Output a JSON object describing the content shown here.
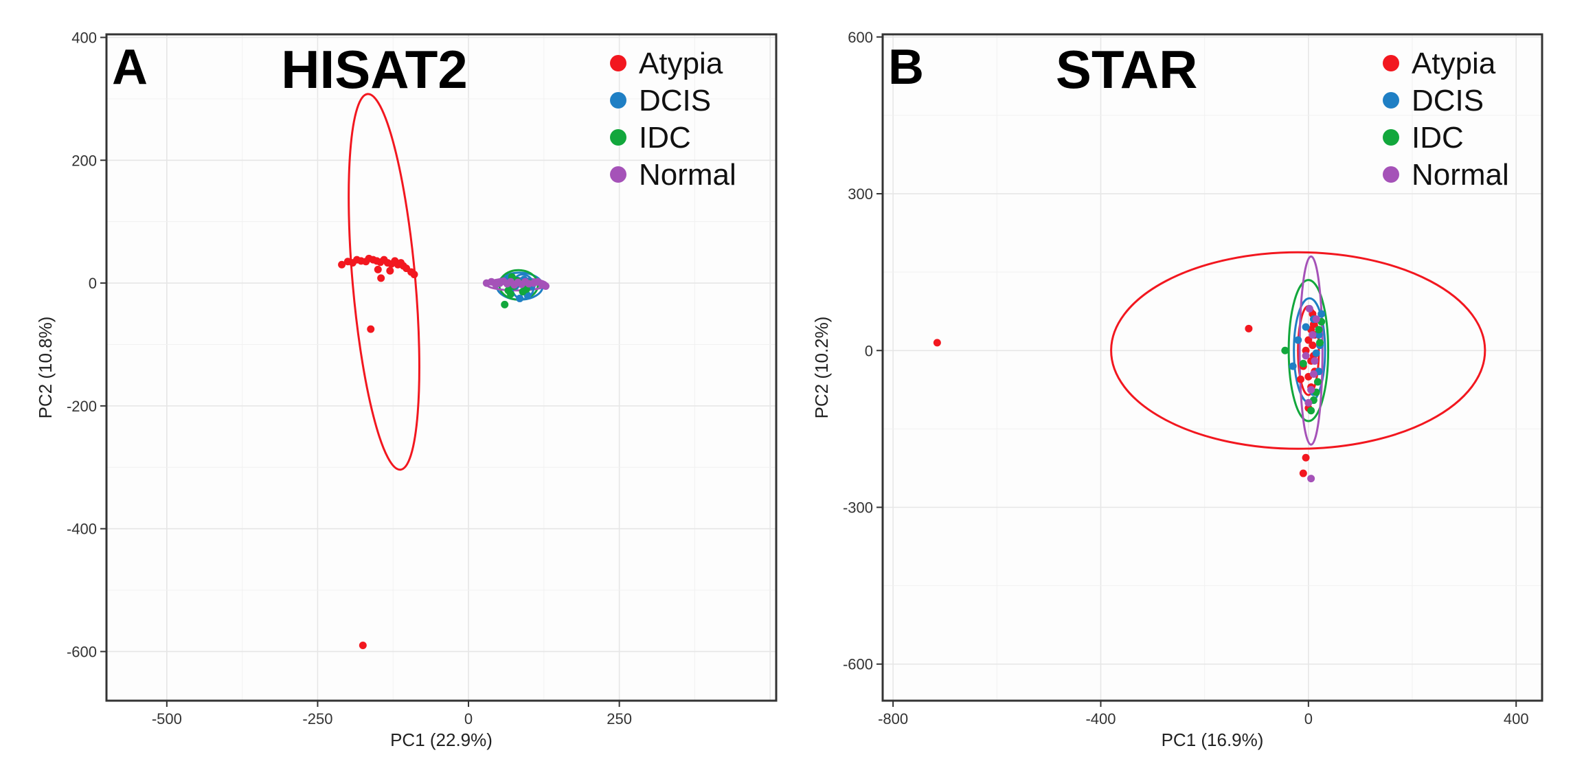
{
  "figure": {
    "colors": {
      "Atypia": "#f2171f",
      "DCIS": "#1f7fc4",
      "IDC": "#12a73c",
      "Normal": "#a552b8"
    }
  },
  "chart_data": [
    {
      "type": "scatter",
      "panel_letter": "A",
      "title": "HISAT2",
      "xlabel": "PC1 (22.9%)",
      "ylabel": "PC2 (10.8%)",
      "xlim": [
        -600,
        510
      ],
      "ylim": [
        -680,
        405
      ],
      "xticks": [
        -500,
        -250,
        0,
        250
      ],
      "yticks": [
        -600,
        -400,
        -200,
        0,
        200,
        400
      ],
      "grid": true,
      "legend_position": "top-right",
      "legend": [
        "Atypia",
        "DCIS",
        "IDC",
        "Normal"
      ],
      "series": [
        {
          "name": "Atypia",
          "points": [
            [
              -210,
              30
            ],
            [
              -200,
              35
            ],
            [
              -192,
              33
            ],
            [
              -185,
              38
            ],
            [
              -178,
              36
            ],
            [
              -170,
              35
            ],
            [
              -165,
              40
            ],
            [
              -158,
              38
            ],
            [
              -152,
              36
            ],
            [
              -146,
              34
            ],
            [
              -140,
              38
            ],
            [
              -134,
              33
            ],
            [
              -128,
              31
            ],
            [
              -122,
              36
            ],
            [
              -117,
              30
            ],
            [
              -112,
              33
            ],
            [
              -108,
              28
            ],
            [
              -103,
              24
            ],
            [
              -150,
              22
            ],
            [
              -95,
              18
            ],
            [
              -90,
              14
            ],
            [
              -130,
              20
            ],
            [
              -145,
              8
            ],
            [
              -162,
              -75
            ],
            [
              -175,
              -590
            ]
          ]
        },
        {
          "name": "DCIS",
          "points": [
            [
              65,
              8
            ],
            [
              72,
              3
            ],
            [
              78,
              -5
            ],
            [
              82,
              4
            ],
            [
              88,
              -2
            ],
            [
              92,
              6
            ],
            [
              95,
              -8
            ],
            [
              100,
              2
            ],
            [
              85,
              -25
            ],
            [
              98,
              -20
            ],
            [
              70,
              -8
            ],
            [
              105,
              -5
            ]
          ]
        },
        {
          "name": "IDC",
          "points": [
            [
              60,
              -35
            ],
            [
              66,
              -12
            ],
            [
              70,
              -18
            ],
            [
              75,
              -5
            ],
            [
              80,
              4
            ],
            [
              85,
              0
            ],
            [
              90,
              -14
            ],
            [
              96,
              -10
            ],
            [
              102,
              0
            ],
            [
              72,
              10
            ]
          ]
        },
        {
          "name": "Normal",
          "points": [
            [
              30,
              0
            ],
            [
              38,
              2
            ],
            [
              45,
              -2
            ],
            [
              52,
              0
            ],
            [
              58,
              3
            ],
            [
              64,
              -1
            ],
            [
              70,
              2
            ],
            [
              76,
              -3
            ],
            [
              82,
              1
            ],
            [
              88,
              -2
            ],
            [
              94,
              2
            ],
            [
              100,
              -1
            ],
            [
              108,
              0
            ],
            [
              115,
              2
            ],
            [
              122,
              -3
            ],
            [
              128,
              -5
            ]
          ]
        }
      ],
      "ellipses": [
        {
          "series": "Atypia",
          "cx": -140,
          "cy": 2,
          "rx": 52,
          "ry": 307,
          "tilt_deg": -5
        },
        {
          "series": "DCIS",
          "cx": 85,
          "cy": -5,
          "rx": 38,
          "ry": 22,
          "tilt_deg": 0
        },
        {
          "series": "IDC",
          "cx": 83,
          "cy": -3,
          "rx": 32,
          "ry": 24,
          "tilt_deg": 0
        },
        {
          "series": "Normal",
          "cx": 80,
          "cy": -2,
          "rx": 50,
          "ry": 10,
          "tilt_deg": 0
        },
        {
          "series": "DCIS",
          "cx": 90,
          "cy": -6,
          "rx": 18,
          "ry": 20,
          "tilt_deg": 0
        }
      ]
    },
    {
      "type": "scatter",
      "panel_letter": "B",
      "title": "STAR",
      "xlabel": "PC1 (16.9%)",
      "ylabel": "PC2 (10.2%)",
      "xlim": [
        -820,
        450
      ],
      "ylim": [
        -670,
        605
      ],
      "xticks": [
        -800,
        -400,
        0,
        400
      ],
      "yticks": [
        -600,
        -300,
        0,
        300,
        600
      ],
      "grid": true,
      "legend_position": "top-right",
      "legend": [
        "Atypia",
        "DCIS",
        "IDC",
        "Normal"
      ],
      "series": [
        {
          "name": "Atypia",
          "points": [
            [
              -715,
              15
            ],
            [
              -115,
              42
            ],
            [
              8,
              70
            ],
            [
              15,
              60
            ],
            [
              10,
              50
            ],
            [
              5,
              40
            ],
            [
              12,
              30
            ],
            [
              0,
              20
            ],
            [
              8,
              10
            ],
            [
              -5,
              0
            ],
            [
              10,
              -10
            ],
            [
              5,
              -20
            ],
            [
              -10,
              -30
            ],
            [
              12,
              -40
            ],
            [
              0,
              -50
            ],
            [
              -15,
              -55
            ],
            [
              5,
              -70
            ],
            [
              0,
              -110
            ],
            [
              -5,
              -205
            ],
            [
              -10,
              -235
            ]
          ]
        },
        {
          "name": "DCIS",
          "points": [
            [
              -30,
              -30
            ],
            [
              -20,
              20
            ],
            [
              10,
              60
            ],
            [
              20,
              30
            ],
            [
              15,
              -5
            ],
            [
              20,
              -40
            ],
            [
              10,
              -80
            ],
            [
              25,
              70
            ],
            [
              -5,
              45
            ],
            [
              22,
              10
            ]
          ]
        },
        {
          "name": "IDC",
          "points": [
            [
              -45,
              0
            ],
            [
              20,
              40
            ],
            [
              25,
              55
            ],
            [
              15,
              -80
            ],
            [
              10,
              -95
            ],
            [
              -10,
              -25
            ],
            [
              18,
              -60
            ],
            [
              22,
              15
            ],
            [
              5,
              -115
            ]
          ]
        },
        {
          "name": "Normal",
          "points": [
            [
              0,
              -100
            ],
            [
              5,
              -75
            ],
            [
              10,
              -45
            ],
            [
              8,
              30
            ],
            [
              2,
              80
            ],
            [
              -5,
              -10
            ],
            [
              15,
              60
            ],
            [
              12,
              -20
            ],
            [
              5,
              -245
            ]
          ]
        }
      ],
      "ellipses": [
        {
          "series": "Atypia",
          "cx": -20,
          "cy": 0,
          "rx": 360,
          "ry": 188,
          "tilt_deg": 0
        },
        {
          "series": "Atypia",
          "cx": 0,
          "cy": 0,
          "rx": 20,
          "ry": 85,
          "tilt_deg": 0
        },
        {
          "series": "DCIS",
          "cx": 2,
          "cy": 0,
          "rx": 30,
          "ry": 100,
          "tilt_deg": 0
        },
        {
          "series": "IDC",
          "cx": 0,
          "cy": 0,
          "rx": 38,
          "ry": 135,
          "tilt_deg": 0
        },
        {
          "series": "Normal",
          "cx": 5,
          "cy": 0,
          "rx": 22,
          "ry": 180,
          "tilt_deg": 0
        }
      ]
    }
  ]
}
